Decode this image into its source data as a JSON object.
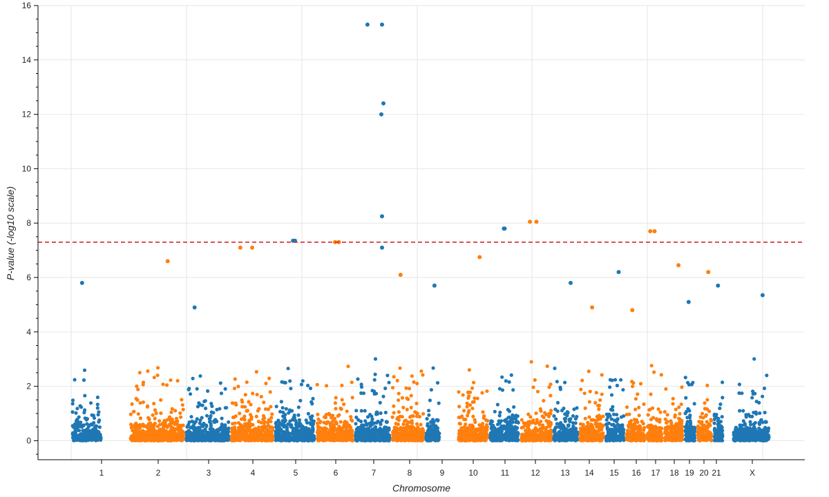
{
  "chart_data": {
    "type": "scatter",
    "title": "",
    "xlabel": "Chromosome",
    "ylabel": "P-value (-log10 scale)",
    "ylim": [
      -0.7,
      16
    ],
    "y_ticks": [
      0,
      2,
      4,
      6,
      8,
      10,
      12,
      14,
      16
    ],
    "grid": true,
    "legend": "none",
    "threshold": {
      "value": 7.3,
      "color": "#d62728",
      "style": "dashed"
    },
    "colors": {
      "odd": "#1f77b4",
      "even": "#ff7f0e",
      "grid": "#e6e6e6",
      "axis": "#000000"
    },
    "chromosomes": [
      {
        "label": "1",
        "color": "odd",
        "max": 5.8
      },
      {
        "label": "2",
        "color": "even",
        "max": 6.6
      },
      {
        "label": "3",
        "color": "odd",
        "max": 4.9
      },
      {
        "label": "4",
        "color": "even",
        "max": 7.1
      },
      {
        "label": "5",
        "color": "odd",
        "max": 7.35
      },
      {
        "label": "6",
        "color": "even",
        "max": 7.3
      },
      {
        "label": "7",
        "color": "odd",
        "max": 15.3
      },
      {
        "label": "8",
        "color": "even",
        "max": 6.1
      },
      {
        "label": "9",
        "color": "odd",
        "max": 5.7
      },
      {
        "label": "10",
        "color": "even",
        "max": 6.75
      },
      {
        "label": "11",
        "color": "odd",
        "max": 7.8
      },
      {
        "label": "12",
        "color": "even",
        "max": 8.05
      },
      {
        "label": "13",
        "color": "odd",
        "max": 5.8
      },
      {
        "label": "14",
        "color": "even",
        "max": 4.9
      },
      {
        "label": "15",
        "color": "odd",
        "max": 6.2
      },
      {
        "label": "16",
        "color": "even",
        "max": 4.8
      },
      {
        "label": "17",
        "color": "even",
        "max": 7.7
      },
      {
        "label": "18",
        "color": "even",
        "max": 6.45
      },
      {
        "label": "19",
        "color": "odd",
        "max": 5.1
      },
      {
        "label": "20",
        "color": "even",
        "max": 6.2
      },
      {
        "label": "21",
        "color": "odd",
        "max": 5.7
      },
      {
        "label": "X",
        "color": "odd",
        "max": 5.35
      }
    ],
    "highlighted_points": [
      {
        "chromosome": "7",
        "y": 15.3
      },
      {
        "chromosome": "7",
        "y": 12.4
      },
      {
        "chromosome": "7",
        "y": 12.0
      },
      {
        "chromosome": "7",
        "y": 8.25
      },
      {
        "chromosome": "12",
        "y": 8.05
      },
      {
        "chromosome": "11",
        "y": 7.8
      },
      {
        "chromosome": "17",
        "y": 7.7
      },
      {
        "chromosome": "5",
        "y": 7.35
      },
      {
        "chromosome": "6",
        "y": 7.3
      },
      {
        "chromosome": "4",
        "y": 7.1
      },
      {
        "chromosome": "7",
        "y": 7.1
      }
    ]
  }
}
